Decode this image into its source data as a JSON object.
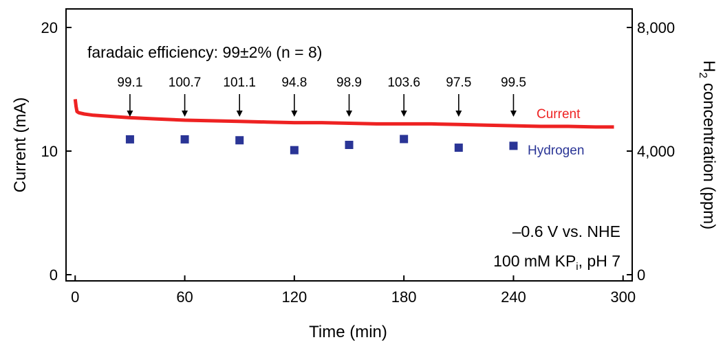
{
  "chart_data": {
    "type": "line+scatter",
    "header": "faradaic efficiency: 99±2% (n = 8)",
    "xlabel": "Time (min)",
    "ylabel_left": "Current (mA)",
    "ylabel_right_parts": {
      "main": "H",
      "sub": "2",
      "rest": " concentration (ppm)"
    },
    "xlim": [
      -5,
      305
    ],
    "ylim_left": [
      -0.5,
      21.5
    ],
    "ylim_right": [
      -200,
      8600
    ],
    "x_ticks": [
      0,
      60,
      120,
      180,
      240,
      300
    ],
    "y_left_ticks": [
      0,
      10,
      20
    ],
    "y_right_ticks": [
      {
        "value": 0,
        "label": "0"
      },
      {
        "value": 4000,
        "label": "4,000"
      },
      {
        "value": 8000,
        "label": "8,000"
      }
    ],
    "conditions": {
      "line1": "–0.6 V vs. NHE",
      "line2_main": "100 mM KP",
      "line2_sub": "i",
      "line2_rest": ", pH 7"
    },
    "series": [
      {
        "name": "Current",
        "axis": "left",
        "color": "#ee2222",
        "x": [
          0,
          0.5,
          1,
          2,
          5,
          10,
          20,
          30,
          45,
          60,
          75,
          90,
          105,
          120,
          135,
          150,
          165,
          180,
          195,
          210,
          225,
          240,
          255,
          270,
          285,
          295
        ],
        "y": [
          14.2,
          13.6,
          13.2,
          13.1,
          13.0,
          12.9,
          12.8,
          12.7,
          12.6,
          12.5,
          12.45,
          12.4,
          12.35,
          12.3,
          12.3,
          12.25,
          12.2,
          12.2,
          12.2,
          12.15,
          12.1,
          12.05,
          12.0,
          12.0,
          11.95,
          11.95
        ]
      },
      {
        "name": "Hydrogen",
        "axis": "right",
        "color": "#2a3596",
        "x": [
          30,
          60,
          90,
          120,
          150,
          180,
          210,
          240
        ],
        "y": [
          4380,
          4380,
          4350,
          4030,
          4200,
          4390,
          4110,
          4170
        ]
      }
    ],
    "annotations": [
      {
        "x": 30,
        "label": "99.1"
      },
      {
        "x": 60,
        "label": "100.7"
      },
      {
        "x": 90,
        "label": "101.1"
      },
      {
        "x": 120,
        "label": "94.8"
      },
      {
        "x": 150,
        "label": "98.9"
      },
      {
        "x": 180,
        "label": "103.6"
      },
      {
        "x": 210,
        "label": "97.5"
      },
      {
        "x": 240,
        "label": "99.5"
      }
    ]
  }
}
